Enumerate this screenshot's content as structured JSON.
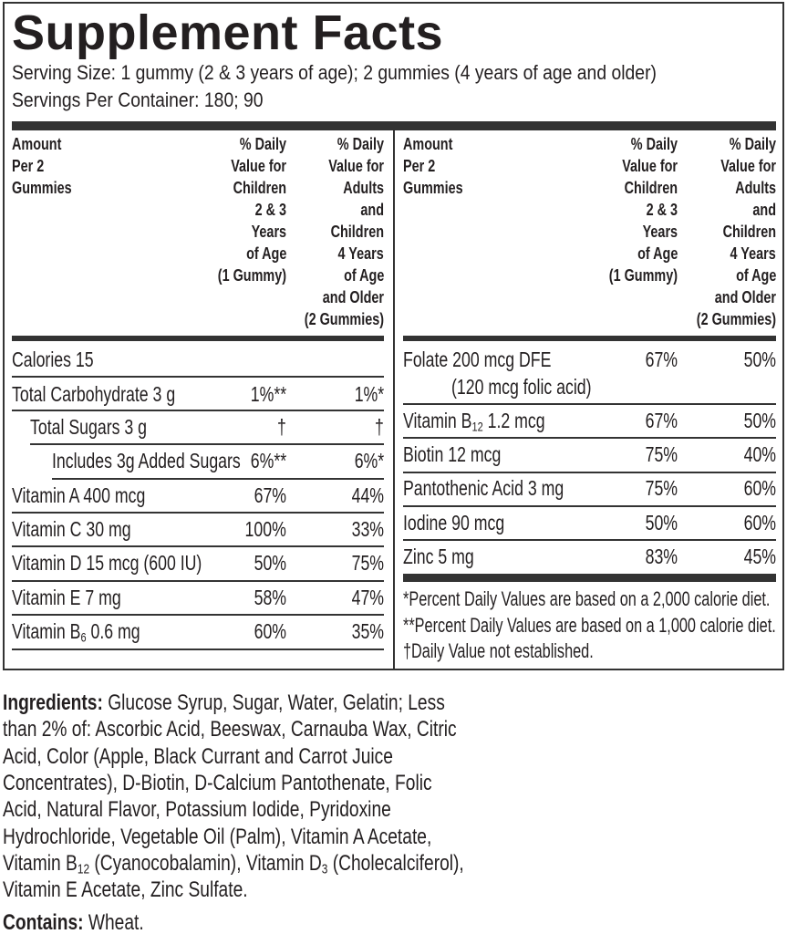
{
  "title": "Supplement Facts",
  "serving_size": "Serving Size:  1 gummy (2 & 3 years of age); 2 gummies (4 years of age and older)",
  "servings_per_container": "Servings Per Container: 180; 90",
  "header": {
    "amount": [
      "Amount",
      "Per 2",
      "Gummies"
    ],
    "children": [
      "% Daily",
      "Value for",
      "Children",
      "2 & 3",
      "Years",
      "of Age",
      "(1 Gummy)"
    ],
    "adults": [
      "% Daily",
      "Value for",
      "Adults",
      "and",
      "Children",
      "4 Years",
      "of Age",
      "and Older",
      "(2 Gummies)"
    ]
  },
  "left_rows": [
    {
      "label": "Calories 15",
      "sub": "",
      "post": "",
      "children": "",
      "adults": "",
      "indent": 0
    },
    {
      "label": "Total Carbohydrate 3 g",
      "sub": "",
      "post": "",
      "children": "1%**",
      "adults": "1%*",
      "indent": 0
    },
    {
      "label": "Total Sugars 3 g",
      "sub": "",
      "post": "",
      "children": "†",
      "adults": "†",
      "indent": 1
    },
    {
      "label": "Includes 3g Added Sugars",
      "sub": "",
      "post": "",
      "children": "6%**",
      "adults": "6%*",
      "indent": 2
    },
    {
      "label": "Vitamin A 400 mcg",
      "sub": "",
      "post": "",
      "children": "67%",
      "adults": "44%",
      "indent": 0
    },
    {
      "label": "Vitamin C 30 mg",
      "sub": "",
      "post": "",
      "children": "100%",
      "adults": "33%",
      "indent": 0
    },
    {
      "label": "Vitamin D 15 mcg (600 IU)",
      "sub": "",
      "post": "",
      "children": "50%",
      "adults": "75%",
      "indent": 0
    },
    {
      "label": "Vitamin E 7 mg",
      "sub": "",
      "post": "",
      "children": "58%",
      "adults": "47%",
      "indent": 0
    },
    {
      "label": "Vitamin B",
      "sub": "6",
      "post": " 0.6 mg",
      "children": "60%",
      "adults": "35%",
      "indent": 0
    }
  ],
  "right_rows": [
    {
      "label": "Folate 200 mcg DFE",
      "sub": "",
      "post": "",
      "line2": "(120 mcg folic acid)",
      "children": "67%",
      "adults": "50%"
    },
    {
      "label": "Vitamin B",
      "sub": "12",
      "post": " 1.2 mcg",
      "line2": "",
      "children": "67%",
      "adults": "50%"
    },
    {
      "label": "Biotin 12 mcg",
      "sub": "",
      "post": "",
      "line2": "",
      "children": "75%",
      "adults": "40%"
    },
    {
      "label": "Pantothenic Acid 3 mg",
      "sub": "",
      "post": "",
      "line2": "",
      "children": "75%",
      "adults": "60%"
    },
    {
      "label": "Iodine 90 mcg",
      "sub": "",
      "post": "",
      "line2": "",
      "children": "50%",
      "adults": "60%"
    },
    {
      "label": "Zinc 5 mg",
      "sub": "",
      "post": "",
      "line2": "",
      "children": "83%",
      "adults": "45%"
    }
  ],
  "footnotes": [
    "*Percent Daily Values are based on a 2,000 calorie diet.",
    "**Percent Daily Values are based on a 1,000 calorie diet.",
    "†Daily Value not established."
  ],
  "ingredients": {
    "label": "Ingredients:",
    "lines": [
      [
        {
          "t": " Glucose Syrup, Sugar, Water, Gelatin; Less"
        }
      ],
      [
        {
          "t": "than 2% of: Ascorbic Acid, Beeswax, Carnauba Wax, Citric"
        }
      ],
      [
        {
          "t": "Acid, Color (Apple, Black Currant and Carrot Juice"
        }
      ],
      [
        {
          "t": "Concentrates), D-Biotin, D-Calcium Pantothenate, Folic"
        }
      ],
      [
        {
          "t": "Acid, Natural Flavor, Potassium Iodide, Pyridoxine"
        }
      ],
      [
        {
          "t": "Hydrochloride, Vegetable Oil (Palm), Vitamin A Acetate,"
        }
      ],
      [
        {
          "t": "Vitamin B"
        },
        {
          "t": "12",
          "sub": true
        },
        {
          "t": " (Cyanocobalamin), Vitamin D"
        },
        {
          "t": "3",
          "sub": true
        },
        {
          "t": " (Cholecalciferol),"
        }
      ],
      [
        {
          "t": "Vitamin E Acetate, Zinc Sulfate."
        }
      ]
    ]
  },
  "contains": {
    "label": "Contains:",
    "value": " Wheat."
  }
}
